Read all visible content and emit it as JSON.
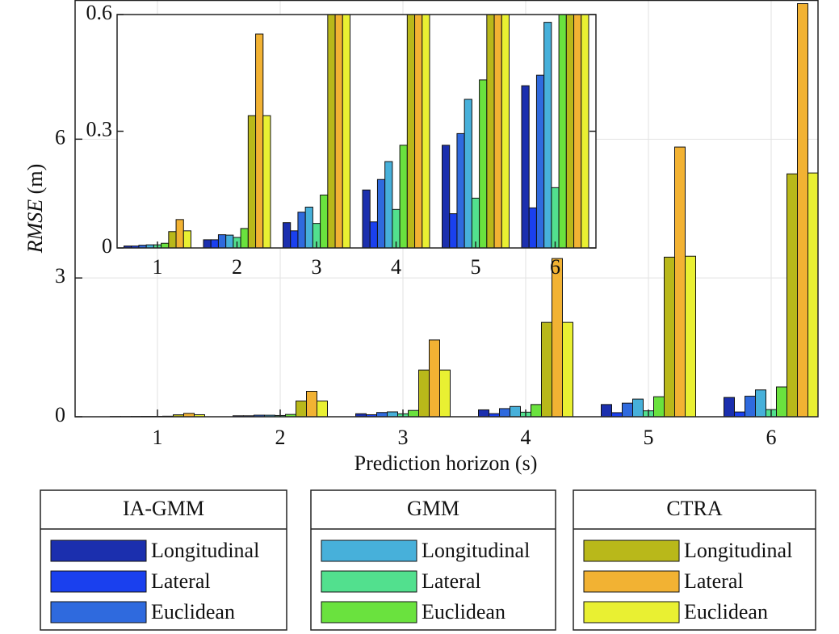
{
  "chart_data": {
    "type": "bar",
    "xlabel": "Prediction horizon (s)",
    "ylabel": [
      "RMSE",
      "(m)"
    ],
    "categories": [
      "1",
      "2",
      "3",
      "4",
      "5",
      "6"
    ],
    "ylim": [
      0,
      9
    ],
    "yticks": [
      0,
      3,
      6
    ],
    "grid": true,
    "series": [
      {
        "group": "IA-GMM",
        "name": "Longitudinal",
        "color": "#1b2fae",
        "values": [
          0.005,
          0.021,
          0.065,
          0.149,
          0.264,
          0.417
        ]
      },
      {
        "group": "IA-GMM",
        "name": "Lateral",
        "color": "#1a40ee",
        "values": [
          0.005,
          0.021,
          0.044,
          0.067,
          0.088,
          0.103
        ]
      },
      {
        "group": "IA-GMM",
        "name": "Euclidean",
        "color": "#2f6ade",
        "values": [
          0.007,
          0.034,
          0.092,
          0.176,
          0.294,
          0.444
        ]
      },
      {
        "group": "GMM",
        "name": "Longitudinal",
        "color": "#47b0da",
        "values": [
          0.008,
          0.033,
          0.105,
          0.222,
          0.382,
          0.58
        ]
      },
      {
        "group": "GMM",
        "name": "Lateral",
        "color": "#52e08e",
        "values": [
          0.008,
          0.027,
          0.063,
          0.099,
          0.128,
          0.155
        ]
      },
      {
        "group": "GMM",
        "name": "Euclidean",
        "color": "#6ae23e",
        "values": [
          0.012,
          0.05,
          0.136,
          0.264,
          0.432,
          0.645
        ]
      },
      {
        "group": "CTRA",
        "name": "Longitudinal",
        "color": "#b9b81a",
        "values": [
          0.042,
          0.34,
          1.01,
          2.04,
          3.45,
          5.25
        ]
      },
      {
        "group": "CTRA",
        "name": "Lateral",
        "color": "#f2b233",
        "values": [
          0.073,
          0.55,
          1.66,
          3.42,
          5.83,
          8.93
        ]
      },
      {
        "group": "CTRA",
        "name": "Euclidean",
        "color": "#e9f032",
        "values": [
          0.044,
          0.34,
          1.01,
          2.04,
          3.47,
          5.27
        ]
      }
    ],
    "inset": {
      "ylim": [
        0,
        0.6
      ],
      "yticks": [
        0,
        0.3,
        0.6
      ]
    }
  }
}
